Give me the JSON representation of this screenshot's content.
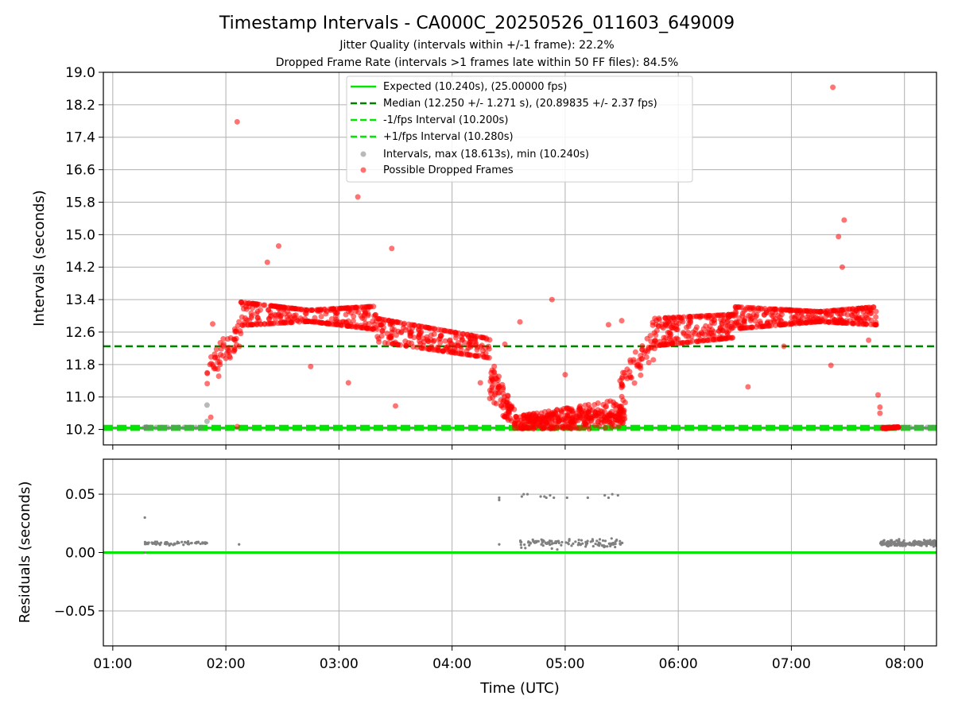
{
  "figure": {
    "title": "Timestamp Intervals - CA000C_20250526_011603_649009",
    "subtitle_jitter": "Jitter Quality (intervals within +/-1 frame): 22.2%",
    "subtitle_dropped": "Dropped Frame Rate (intervals >1 frames late within 50 FF files): 84.5%"
  },
  "colors": {
    "expected": "#00e600",
    "median": "#008000",
    "dropped": "#ff0000",
    "intervals": "#808080",
    "grid": "#b0b0b0"
  },
  "chart_data": [
    {
      "type": "scatter",
      "ylabel": "Intervals (seconds)",
      "xlim": [
        "00:55",
        "08:17"
      ],
      "ylim": [
        9.82,
        19.0
      ],
      "yticks": [
        "10.2",
        "11.0",
        "11.8",
        "12.6",
        "13.4",
        "14.2",
        "15.0",
        "15.8",
        "16.6",
        "17.4",
        "18.2",
        "19.0"
      ],
      "grid": true,
      "legend_position": "top-center",
      "lines": {
        "expected": {
          "label": "Expected (10.240s), (25.00000 fps)",
          "y": 10.24,
          "style": "solid"
        },
        "median": {
          "label": "Median (12.250 +/- 1.271 s), (20.89835 +/- 2.37 fps)",
          "y": 12.25,
          "style": "dashed"
        },
        "minus_fps": {
          "label": "-1/fps Interval (10.200s)",
          "y": 10.2,
          "style": "dashed"
        },
        "plus_fps": {
          "label": "+1/fps Interval (10.280s)",
          "y": 10.28,
          "style": "dashed"
        }
      },
      "series": [
        {
          "name": "Intervals, max (18.613s), min (10.240s)",
          "role": "intervals",
          "points": [
            [
              "01:17",
              10.25
            ],
            [
              "01:18",
              10.26
            ],
            [
              "01:20",
              10.25
            ],
            [
              "01:23",
              10.25
            ],
            [
              "01:26",
              10.25
            ],
            [
              "01:29",
              10.25
            ],
            [
              "01:32",
              10.25
            ],
            [
              "01:35",
              10.25
            ],
            [
              "01:38",
              10.25
            ],
            [
              "01:41",
              10.25
            ],
            [
              "01:44",
              10.25
            ],
            [
              "01:47",
              10.25
            ],
            [
              "01:50",
              10.4
            ],
            [
              "01:50",
              10.8
            ],
            [
              "07:48",
              10.25
            ],
            [
              "07:51",
              10.25
            ],
            [
              "07:54",
              10.25
            ],
            [
              "07:57",
              10.25
            ],
            [
              "08:00",
              10.25
            ],
            [
              "08:03",
              10.25
            ],
            [
              "08:06",
              10.25
            ],
            [
              "08:09",
              10.25
            ],
            [
              "08:12",
              10.25
            ],
            [
              "08:15",
              10.25
            ]
          ]
        },
        {
          "name": "Possible Dropped Frames",
          "role": "dropped",
          "points": [
            [
              "02:06",
              17.78
            ],
            [
              "03:10",
              15.93
            ],
            [
              "02:28",
              14.72
            ],
            [
              "03:28",
              14.66
            ],
            [
              "02:22",
              14.32
            ],
            [
              "07:22",
              18.63
            ],
            [
              "07:25",
              14.95
            ],
            [
              "07:28",
              15.36
            ],
            [
              "07:27",
              14.2
            ],
            [
              "04:53",
              13.4
            ],
            [
              "07:21",
              11.78
            ],
            [
              "04:36",
              12.85
            ],
            [
              "05:30",
              12.88
            ],
            [
              "05:23",
              12.78
            ],
            [
              "05:00",
              11.55
            ],
            [
              "02:06",
              10.27
            ],
            [
              "01:52",
              10.5
            ],
            [
              "01:53",
              12.8
            ],
            [
              "03:05",
              11.35
            ],
            [
              "03:30",
              10.78
            ],
            [
              "04:15",
              11.35
            ],
            [
              "02:45",
              11.75
            ],
            [
              "04:28",
              12.3
            ],
            [
              "06:37",
              11.25
            ],
            [
              "06:56",
              12.25
            ],
            [
              "07:41",
              12.4
            ],
            [
              "07:46",
              11.05
            ],
            [
              "07:47",
              10.75
            ],
            [
              "07:47",
              10.6
            ]
          ],
          "clusters": [
            {
              "x": [
                "01:50",
                "02:08"
              ],
              "y_from": [
                11.0,
                12.3
              ],
              "y_to": [
                12.2,
                13.1
              ],
              "n": 55
            },
            {
              "x": [
                "02:08",
                "03:20"
              ],
              "y_from": [
                12.9,
                13.2
              ],
              "y_to": [
                13.1,
                12.8
              ],
              "spread": 0.45,
              "n": 330
            },
            {
              "x": [
                "03:20",
                "04:20"
              ],
              "y_from": [
                12.8,
                12.5
              ],
              "y_to": [
                12.3,
                12.1
              ],
              "spread": 0.45,
              "n": 260
            },
            {
              "x": [
                "04:20",
                "04:33"
              ],
              "y_from": [
                11.9,
                10.9
              ],
              "y_to": [
                10.6,
                10.4
              ],
              "spread": 0.3,
              "n": 80
            },
            {
              "x": [
                "04:33",
                "05:32"
              ],
              "y_from": [
                10.22,
                10.45
              ],
              "y_to": [
                10.3,
                10.9
              ],
              "spread": 0.2,
              "n": 380
            },
            {
              "x": [
                "05:29",
                "05:48"
              ],
              "y_from": [
                10.6,
                11.9
              ],
              "y_to": [
                12.0,
                12.9
              ],
              "spread": 0.3,
              "n": 60
            },
            {
              "x": [
                "05:48",
                "06:30"
              ],
              "y_from": [
                12.4,
                12.8
              ],
              "y_to": [
                12.6,
                12.9
              ],
              "spread": 0.45,
              "n": 230
            },
            {
              "x": [
                "06:30",
                "07:45"
              ],
              "y_from": [
                12.8,
                13.1
              ],
              "y_to": [
                13.1,
                12.9
              ],
              "spread": 0.4,
              "n": 360
            },
            {
              "x": [
                "07:48",
                "07:57"
              ],
              "y_from": [
                10.22,
                10.24
              ],
              "y_to": [
                10.26,
                10.26
              ],
              "spread": 0.02,
              "n": 40
            }
          ]
        }
      ]
    },
    {
      "type": "scatter",
      "xlabel": "Time (UTC)",
      "ylabel": "Residuals (seconds)",
      "xlim": [
        "00:55",
        "08:17"
      ],
      "ylim": [
        -0.08,
        0.08
      ],
      "xticks": [
        "01:00",
        "02:00",
        "03:00",
        "04:00",
        "05:00",
        "06:00",
        "07:00",
        "08:00"
      ],
      "yticks": [
        "−0.05",
        "0.00",
        "0.05"
      ],
      "ytick_values": [
        -0.05,
        0.0,
        0.05
      ],
      "grid": true,
      "zero_line": 0.0,
      "series": [
        {
          "name": "Residuals",
          "points": [
            [
              "01:17",
              0.03
            ],
            [
              "01:17",
              0.0
            ],
            [
              "02:07",
              0.007
            ],
            [
              "04:25",
              0.047
            ],
            [
              "04:25",
              0.045
            ],
            [
              "04:25",
              0.007
            ],
            [
              "04:37",
              0.048
            ],
            [
              "04:38",
              0.05
            ],
            [
              "04:40",
              0.05
            ],
            [
              "04:47",
              0.048
            ],
            [
              "04:49",
              0.048
            ],
            [
              "04:50",
              0.047
            ],
            [
              "04:52",
              0.049
            ],
            [
              "04:54",
              0.047
            ],
            [
              "05:01",
              0.047
            ],
            [
              "05:12",
              0.047
            ],
            [
              "05:21",
              0.049
            ],
            [
              "05:23",
              0.047
            ],
            [
              "05:25",
              0.05
            ],
            [
              "05:28",
              0.049
            ]
          ],
          "clusters": [
            {
              "x": [
                "01:17",
                "01:50"
              ],
              "y": 0.008,
              "spread": 0.001,
              "n": 70
            },
            {
              "x": [
                "04:36",
                "05:31"
              ],
              "y": 0.008,
              "spread": 0.003,
              "n": 120
            },
            {
              "x": [
                "07:47",
                "08:17"
              ],
              "y": 0.008,
              "spread": 0.002,
              "n": 200
            }
          ]
        }
      ]
    }
  ]
}
